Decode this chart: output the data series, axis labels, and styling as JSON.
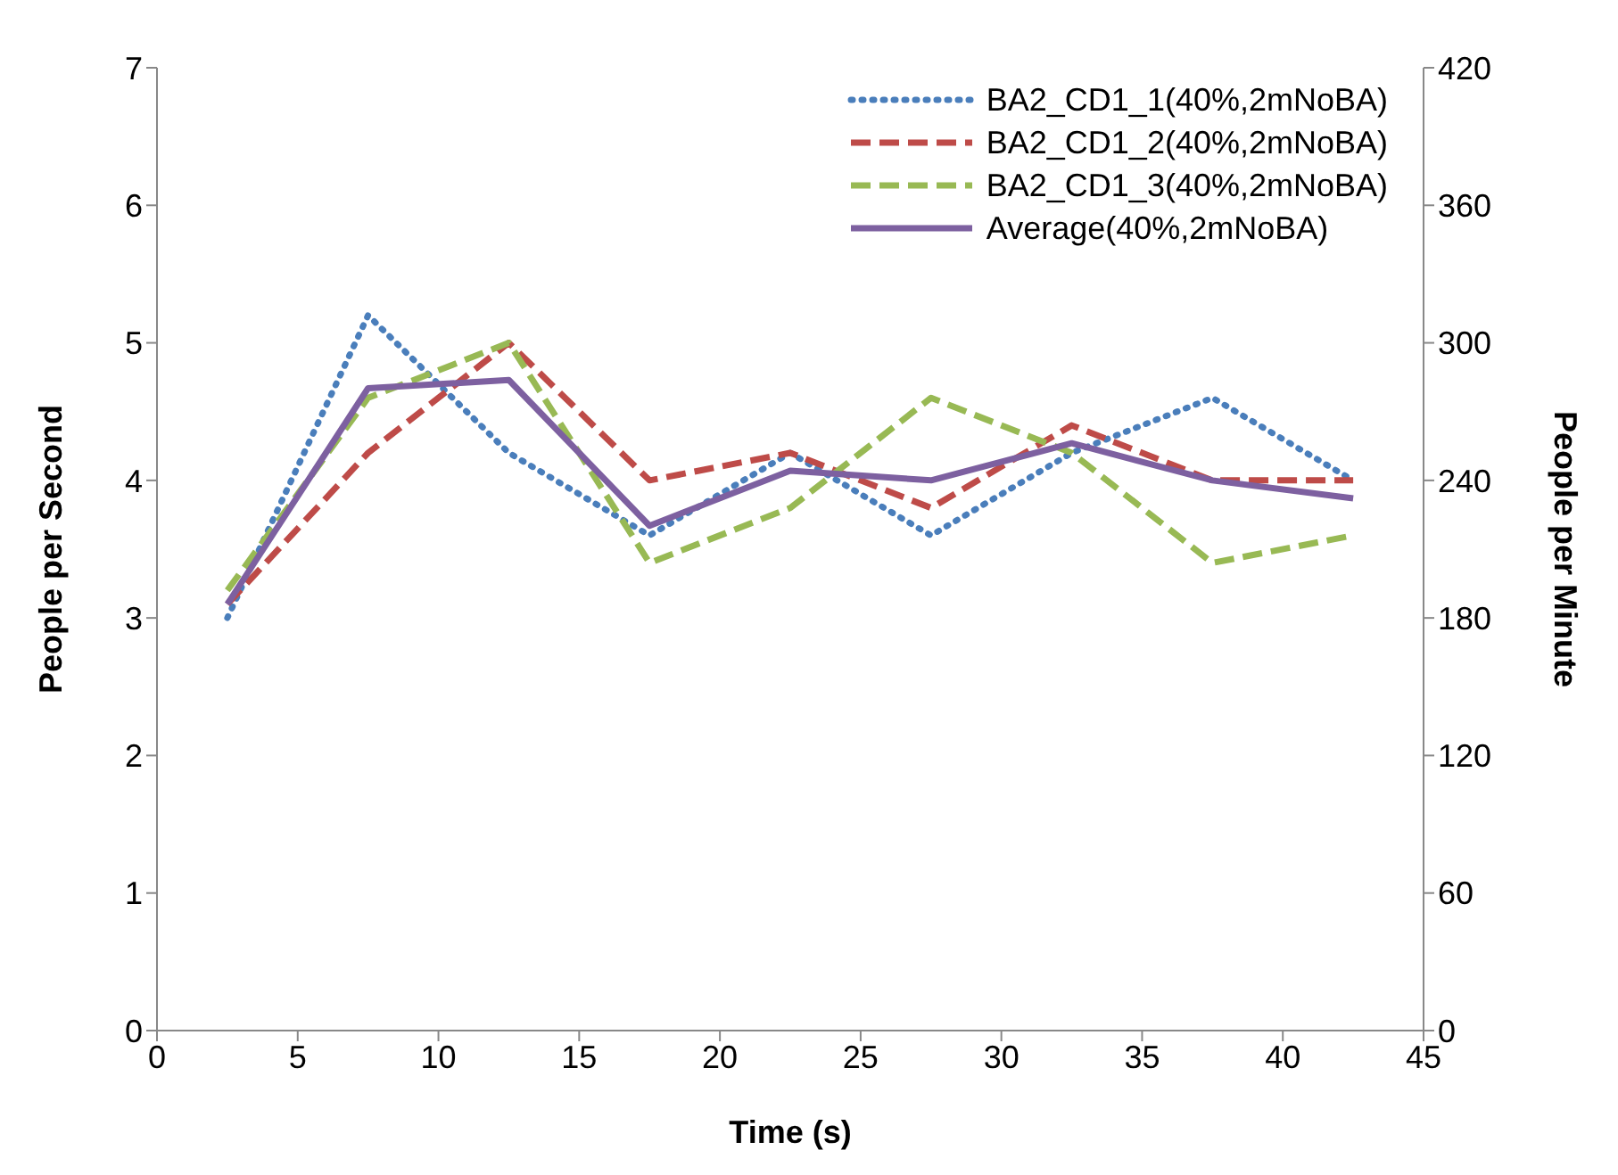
{
  "chart_data": {
    "type": "line",
    "xlabel": "Time (s)",
    "ylabel": "People per Second",
    "y2label": "People per Minute",
    "x": [
      2.5,
      7.5,
      12.5,
      17.5,
      22.5,
      27.5,
      32.5,
      37.5,
      42.5
    ],
    "series": [
      {
        "name": "BA2_CD1_1(40%,2mNoBA)",
        "color": "#4a7ebb",
        "line_style": "dotted",
        "values": [
          3.0,
          5.2,
          4.2,
          3.6,
          4.2,
          3.6,
          4.2,
          4.6,
          4.0
        ]
      },
      {
        "name": "BA2_CD1_2(40%,2mNoBA)",
        "color": "#be4b48",
        "line_style": "dashed",
        "values": [
          3.1,
          4.2,
          5.0,
          4.0,
          4.2,
          3.8,
          4.4,
          4.0,
          4.0
        ]
      },
      {
        "name": "BA2_CD1_3(40%,2mNoBA)",
        "color": "#98b954",
        "line_style": "dashed",
        "values": [
          3.2,
          4.6,
          5.0,
          3.4,
          3.8,
          4.6,
          4.2,
          3.4,
          3.6
        ]
      },
      {
        "name": "Average(40%,2mNoBA)",
        "color": "#7d60a0",
        "line_style": "solid",
        "values": [
          3.1,
          4.67,
          4.73,
          3.67,
          4.07,
          4.0,
          4.27,
          4.0,
          3.87
        ]
      }
    ],
    "xlim": [
      0,
      45
    ],
    "xticks": [
      0,
      5,
      10,
      15,
      20,
      25,
      30,
      35,
      40,
      45
    ],
    "ylim": [
      0,
      7
    ],
    "yticks": [
      0,
      1,
      2,
      3,
      4,
      5,
      6,
      7
    ],
    "y2lim": [
      0,
      420
    ],
    "y2ticks": [
      0,
      60,
      120,
      180,
      240,
      300,
      360,
      420
    ],
    "legend": "top right"
  }
}
